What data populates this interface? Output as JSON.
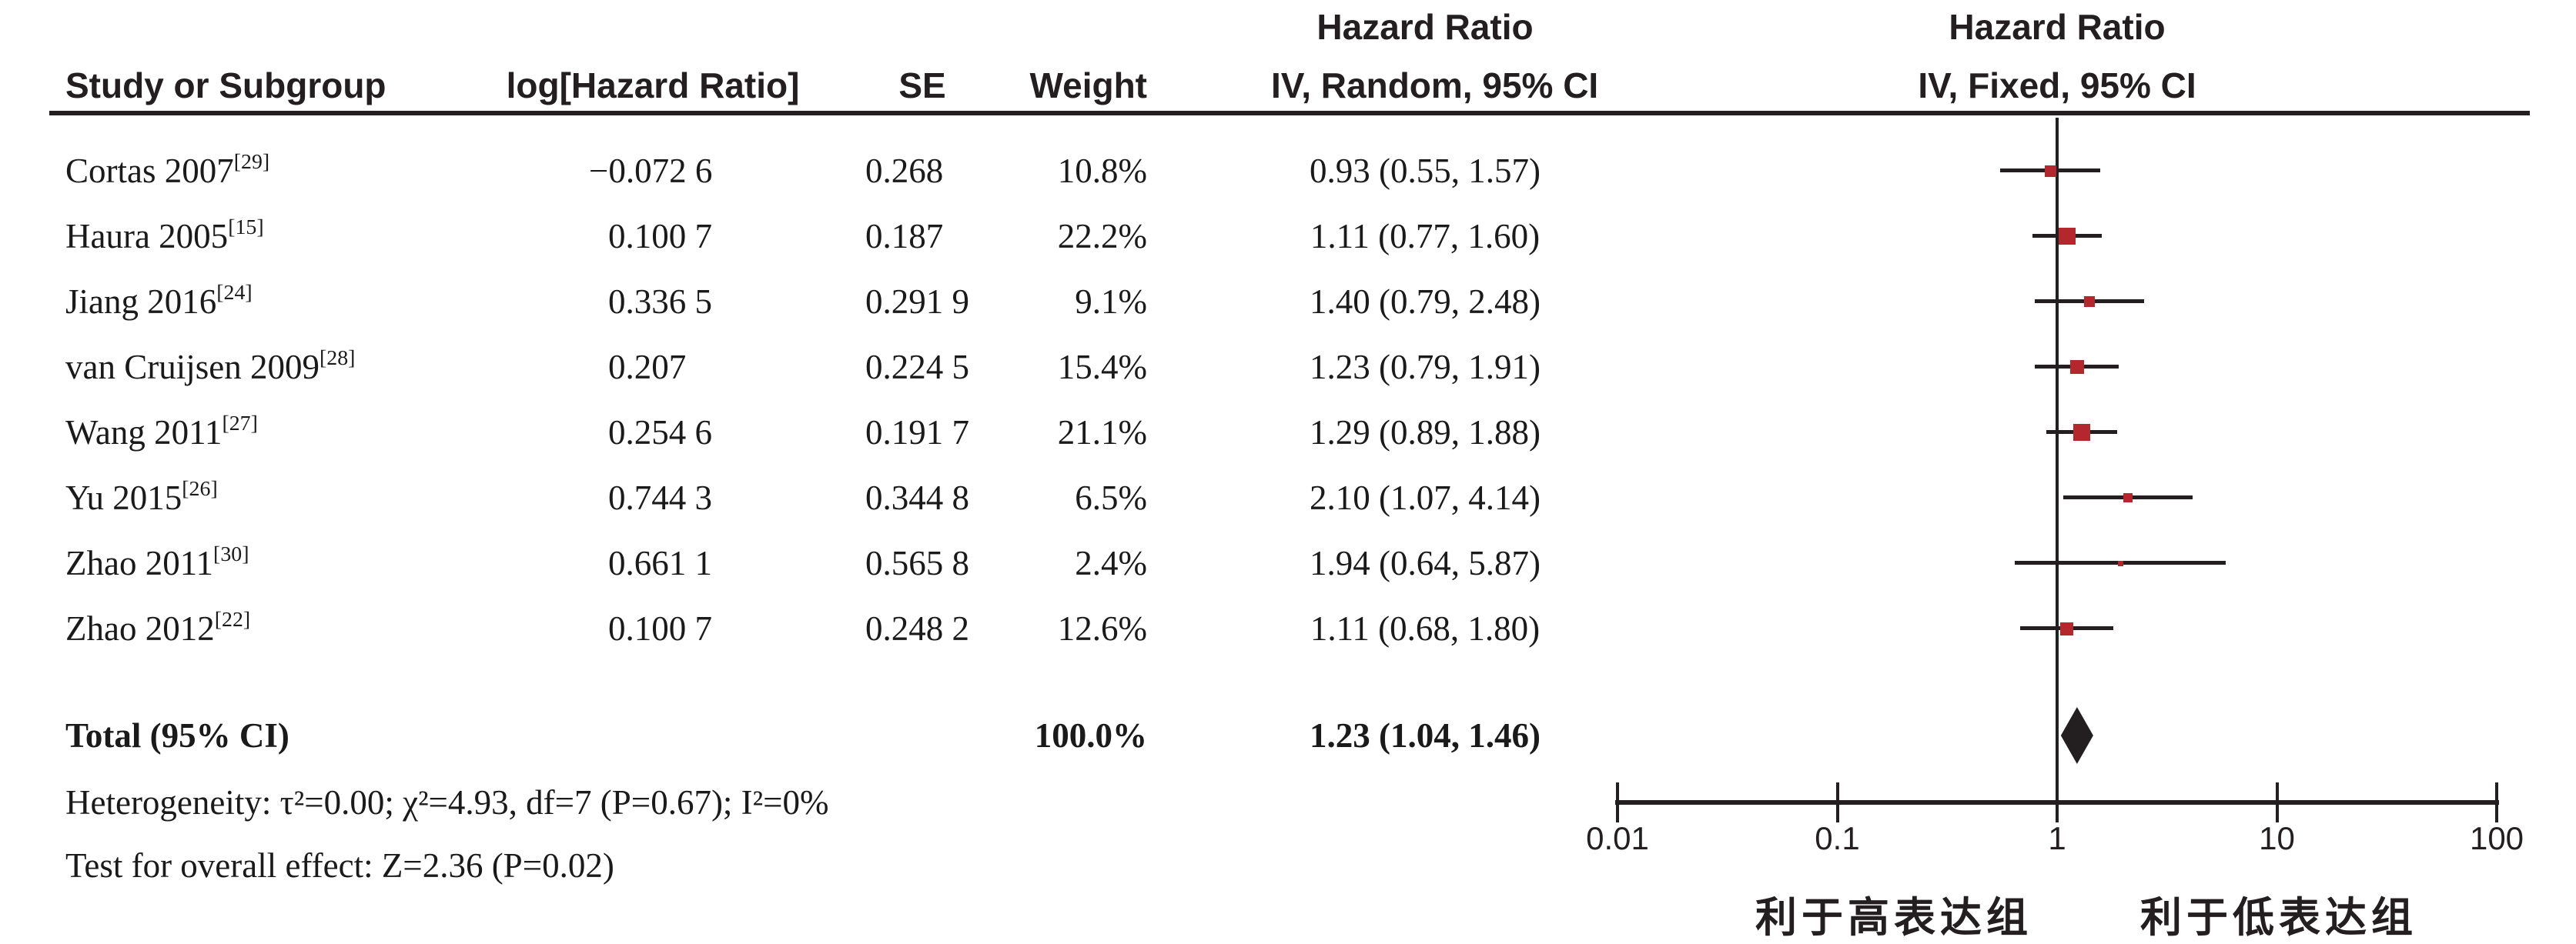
{
  "table": {
    "headers": {
      "study": "Study or Subgroup",
      "log_hr": "log[Hazard Ratio]",
      "se": "SE",
      "weight": "Weight",
      "hazard_ratio_left_line1": "Hazard Ratio",
      "hazard_ratio_left_line2": "IV, Random, 95% CI",
      "hazard_ratio_right_line1": "Hazard Ratio",
      "hazard_ratio_right_line2": "IV, Fixed, 95% CI"
    },
    "rows": [
      {
        "name": "Cortas 2007",
        "ref": "[29]",
        "log_hr": "−0.072 6",
        "se": "0.268",
        "weight": "10.8%",
        "hr_ci": "0.93 (0.55, 1.57)"
      },
      {
        "name": "Haura 2005",
        "ref": "[15]",
        "log_hr": "0.100 7",
        "se": "0.187",
        "weight": "22.2%",
        "hr_ci": "1.11 (0.77, 1.60)"
      },
      {
        "name": "Jiang 2016",
        "ref": "[24]",
        "log_hr": "0.336 5",
        "se": "0.291 9",
        "weight": "9.1%",
        "hr_ci": "1.40 (0.79, 2.48)"
      },
      {
        "name": "van Cruijsen 2009",
        "ref": "[28]",
        "log_hr": "0.207",
        "se": "0.224 5",
        "weight": "15.4%",
        "hr_ci": "1.23 (0.79, 1.91)"
      },
      {
        "name": "Wang 2011",
        "ref": "[27]",
        "log_hr": "0.254 6",
        "se": "0.191 7",
        "weight": "21.1%",
        "hr_ci": "1.29 (0.89, 1.88)"
      },
      {
        "name": "Yu 2015",
        "ref": "[26]",
        "log_hr": "0.744 3",
        "se": "0.344 8",
        "weight": "6.5%",
        "hr_ci": "2.10 (1.07, 4.14)"
      },
      {
        "name": "Zhao 2011",
        "ref": "[30]",
        "log_hr": "0.661 1",
        "se": "0.565 8",
        "weight": "2.4%",
        "hr_ci": "1.94 (0.64, 5.87)"
      },
      {
        "name": "Zhao 2012",
        "ref": "[22]",
        "log_hr": "0.100 7",
        "se": "0.248 2",
        "weight": "12.6%",
        "hr_ci": "1.11 (0.68, 1.80)"
      }
    ],
    "total": {
      "label": "Total (95% CI)",
      "weight": "100.0%",
      "hr_ci": "1.23 (1.04, 1.46)"
    },
    "heterogeneity": "Heterogeneity: τ²=0.00; χ²=4.93, df=7 (P=0.67); I²=0%",
    "overall_effect": "Test for overall effect: Z=2.36 (P=0.02)"
  },
  "chart_data": {
    "type": "forest",
    "x_axis": {
      "scale": "log",
      "ticks": [
        0.01,
        0.1,
        1,
        10,
        100
      ],
      "tick_labels": [
        "0.01",
        "0.1",
        "1",
        "10",
        "100"
      ],
      "reference_line": 1
    },
    "xlabel_left": "利于高表达组",
    "xlabel_right": "利于低表达组",
    "studies": [
      {
        "name": "Cortas 2007",
        "hr": 0.93,
        "ci_low": 0.55,
        "ci_high": 1.57,
        "weight_pct": 10.8
      },
      {
        "name": "Haura 2005",
        "hr": 1.11,
        "ci_low": 0.77,
        "ci_high": 1.6,
        "weight_pct": 22.2
      },
      {
        "name": "Jiang 2016",
        "hr": 1.4,
        "ci_low": 0.79,
        "ci_high": 2.48,
        "weight_pct": 9.1
      },
      {
        "name": "van Cruijsen 2009",
        "hr": 1.23,
        "ci_low": 0.79,
        "ci_high": 1.91,
        "weight_pct": 15.4
      },
      {
        "name": "Wang 2011",
        "hr": 1.29,
        "ci_low": 0.89,
        "ci_high": 1.88,
        "weight_pct": 21.1
      },
      {
        "name": "Yu 2015",
        "hr": 2.1,
        "ci_low": 1.07,
        "ci_high": 4.14,
        "weight_pct": 6.5
      },
      {
        "name": "Zhao 2011",
        "hr": 1.94,
        "ci_low": 0.64,
        "ci_high": 5.87,
        "weight_pct": 2.4
      },
      {
        "name": "Zhao 2012",
        "hr": 1.11,
        "ci_low": 0.68,
        "ci_high": 1.8,
        "weight_pct": 12.6
      }
    ],
    "total": {
      "hr": 1.23,
      "ci_low": 1.04,
      "ci_high": 1.46
    },
    "marker_color": "#b4282d",
    "diamond_color": "#231f20",
    "axis_color": "#231f20"
  }
}
